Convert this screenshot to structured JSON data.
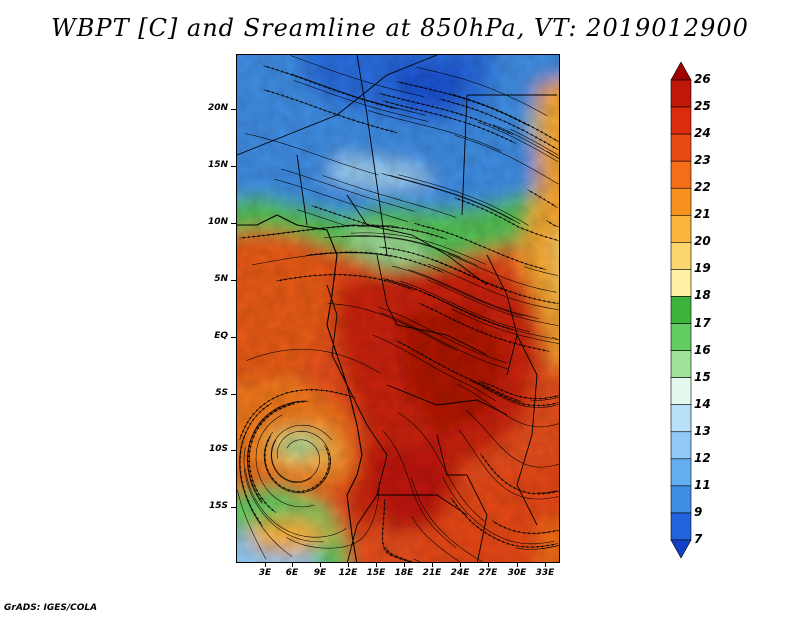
{
  "title": "WBPT [C] and Sreamline at 850hPa, VT: 2019012900",
  "footer": "GrADS: IGES/COLA",
  "map": {
    "variable": "Wet-bulb potential temperature with streamlines",
    "latitude_labels": [
      "20N",
      "15N",
      "10N",
      "5N",
      "EQ",
      "5S",
      "10S",
      "15S"
    ],
    "longitude_labels": [
      "3E",
      "6E",
      "9E",
      "12E",
      "15E",
      "18E",
      "21E",
      "24E",
      "27E",
      "30E",
      "33E"
    ]
  },
  "colorbar": {
    "labels": [
      "26",
      "25",
      "24",
      "23",
      "22",
      "21",
      "20",
      "19",
      "18",
      "17",
      "16",
      "15",
      "14",
      "13",
      "12",
      "11",
      "9",
      "7"
    ],
    "colors": [
      "#a00000",
      "#c01808",
      "#dc2c10",
      "#ea4a14",
      "#f46e18",
      "#f8921e",
      "#fbb43c",
      "#fcd66e",
      "#fff0a6",
      "#3cb43c",
      "#62cc62",
      "#a0e29a",
      "#e4f8ee",
      "#b8e0f8",
      "#90caf4",
      "#64aef0",
      "#3e8ee6",
      "#2262dc",
      "#1440c8"
    ]
  }
}
